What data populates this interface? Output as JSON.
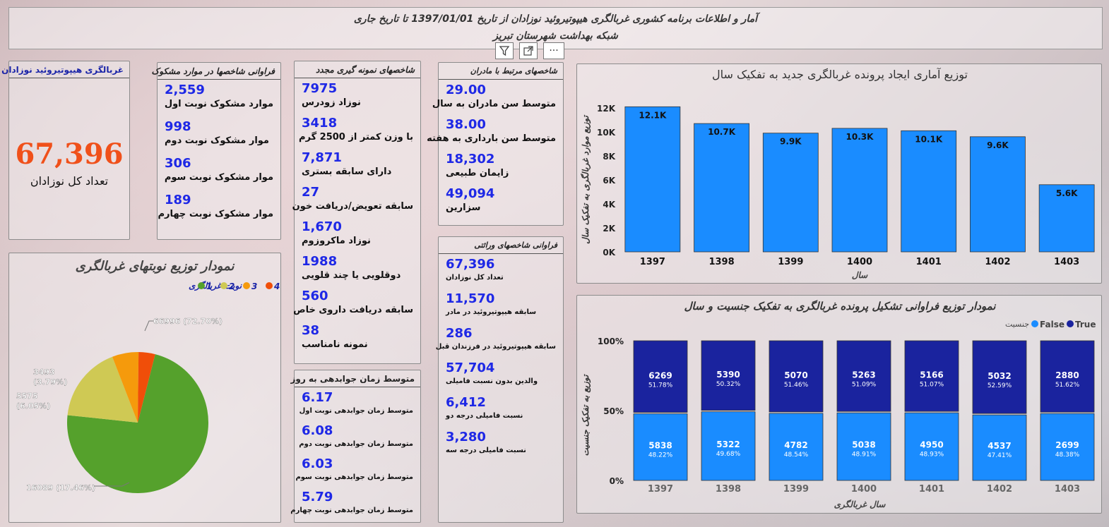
{
  "header": {
    "title_line1": "آمار و اطلاعات برنامه کشوری غربالگری هیپوتیروئید نوزادان  از تاریخ 1397/01/01 تا تاریخ جاری",
    "title_line2": "شبکه بهداشت شهرستان تبریز"
  },
  "toolbar": {
    "filter_icon": "filter-icon",
    "focus_icon": "focus-mode-icon",
    "more_icon": "more-options-icon"
  },
  "screening_card": {
    "title": "غربالگری هیپوتیروئید نوزادان",
    "total_value": "67,396",
    "total_label": "تعداد کل نوزادان"
  },
  "suspect_panel": {
    "title": "فراوانی شاخصها در موارد مشکوک",
    "items": [
      {
        "value": "2,559",
        "label": "موارد مشکوک نوبت اول"
      },
      {
        "value": "998",
        "label": "موار مشکوک نوبت دوم"
      },
      {
        "value": "306",
        "label": "موار مشکوک نوبت سوم"
      },
      {
        "value": "189",
        "label": "موار مشکوک نوبت چهارم"
      }
    ]
  },
  "resample_panel": {
    "title": "شاخصهای نمونه گیری مجدد",
    "items": [
      {
        "value": "7975",
        "label": "نوزاد زودرس"
      },
      {
        "value": "3418",
        "label": "با وزن کمتر از 2500 گرم"
      },
      {
        "value": "7,871",
        "label": "دارای سابقه بستری"
      },
      {
        "value": "27",
        "label": "سابقه تعویض/دریافت خون"
      },
      {
        "value": "1,670",
        "label": "نوزاد ماکروزوم"
      },
      {
        "value": "1988",
        "label": "دوقلویی یا چند قلویی"
      },
      {
        "value": "560",
        "label": "سابقه دریافت داروی خاص"
      },
      {
        "value": "38",
        "label": "نمونه نامناسب"
      }
    ]
  },
  "mothers_panel": {
    "title": "شاخصهای مرتبط با مادران",
    "items": [
      {
        "value": "29.00",
        "label": "متوسط سن مادران به سال"
      },
      {
        "value": "38.00",
        "label": "متوسط سن بارداری به هفته"
      },
      {
        "value": "18,302",
        "label": "زایمان طبیعی"
      },
      {
        "value": "49,094",
        "label": "سزارین"
      }
    ]
  },
  "heredity_panel": {
    "title": "فراوانی شاخصهای وراثتی",
    "items": [
      {
        "value": "67,396",
        "label": "تعداد کل نوزادان"
      },
      {
        "value": "11,570",
        "label": "سابقه هیپوتیروئید در مادر"
      },
      {
        "value": "286",
        "label": "سابقه هیپوتیروئید در فرزندان قبل"
      },
      {
        "value": "57,704",
        "label": "والدین بدون نسبت فامیلی"
      },
      {
        "value": "6,412",
        "label": "نسبت فامیلی درجه دو"
      },
      {
        "value": "3,280",
        "label": "نسبت فامیلی درجه سه"
      }
    ]
  },
  "response_panel": {
    "title": "متوسط زمان جوابدهی به روز",
    "items": [
      {
        "value": "6.17",
        "label": "متوسط زمان جوابدهی نوبت اول"
      },
      {
        "value": "6.08",
        "label": "متوسط زمان جوابدهی نوبت دوم"
      },
      {
        "value": "6.03",
        "label": "متوسط زمان جوابدهی نوبت سوم"
      },
      {
        "value": "5.79",
        "label": "متوسط زمان جوابدهی نوبت چهارم"
      }
    ]
  },
  "pie_panel": {
    "title": "نمودار توزیع نوبتهای غربالگری",
    "legend_title": "نوبت غربالگری",
    "colors": [
      "#55a12c",
      "#cfc954",
      "#f59a0c",
      "#f04e09"
    ]
  },
  "bar_panel": {
    "title": "توزیع آماری ایجاد پرونده غربالگری جدید به تفکیک سال",
    "color": "#1a8cff"
  },
  "stack_panel": {
    "title": "نمودار توزیع فراوانی تشکیل پرونده غربالگری به تفکیک جنسیت و سال",
    "legend_title": "جنسیت",
    "colors": {
      "true": "#1a239e",
      "false": "#1a8cff"
    }
  },
  "chart_data": [
    {
      "type": "pie",
      "title": "نمودار توزیع نوبتهای غربالگری",
      "legend_title": "نوبت غربالگری",
      "categories": [
        "1",
        "2",
        "3",
        "4"
      ],
      "values": [
        66996,
        16089,
        5575,
        3493
      ],
      "labels": [
        "66996 (72.70%)",
        "16089 (17.46%)",
        "5575 (6.05%)",
        "3493 (3.79%)"
      ]
    },
    {
      "type": "bar",
      "title": "توزیع آماری ایجاد پرونده غربالگری جدید به تفکیک سال",
      "xlabel": "سال",
      "ylabel": "توزیع موارد غربالگری به تفکیک سال",
      "categories": [
        "1397",
        "1398",
        "1399",
        "1400",
        "1401",
        "1402",
        "1403"
      ],
      "values": [
        12100,
        10700,
        9900,
        10300,
        10100,
        9600,
        5600
      ],
      "data_labels": [
        "12.1K",
        "10.7K",
        "9.9K",
        "10.3K",
        "10.1K",
        "9.6K",
        "5.6K"
      ],
      "yticks": [
        "0K",
        "2K",
        "4K",
        "6K",
        "8K",
        "10K",
        "12K"
      ],
      "ylim": [
        0,
        12000
      ]
    },
    {
      "type": "bar",
      "stacked": "percent",
      "title": "نمودار توزیع فراوانی تشکیل پرونده غربالگری به تفکیک جنسیت و سال",
      "xlabel": "سال غربالگری",
      "ylabel": "توزیع به تفکیک جنسیت",
      "legend_title": "جنسیت",
      "categories": [
        "1397",
        "1398",
        "1399",
        "1400",
        "1401",
        "1402",
        "1403"
      ],
      "yticks": [
        "0%",
        "50%",
        "100%"
      ],
      "series": [
        {
          "name": "True",
          "values": [
            6269,
            5390,
            5070,
            5263,
            5166,
            5032,
            2880
          ],
          "percent_labels": [
            "51.78%",
            "50.32%",
            "51.46%",
            "51.09%",
            "51.07%",
            "52.59%",
            "51.62%"
          ]
        },
        {
          "name": "False",
          "values": [
            5838,
            5322,
            4782,
            5038,
            4950,
            4537,
            2699
          ],
          "percent_labels": [
            "48.22%",
            "49.68%",
            "48.54%",
            "48.91%",
            "48.93%",
            "47.41%",
            "48.38%"
          ]
        }
      ]
    }
  ]
}
